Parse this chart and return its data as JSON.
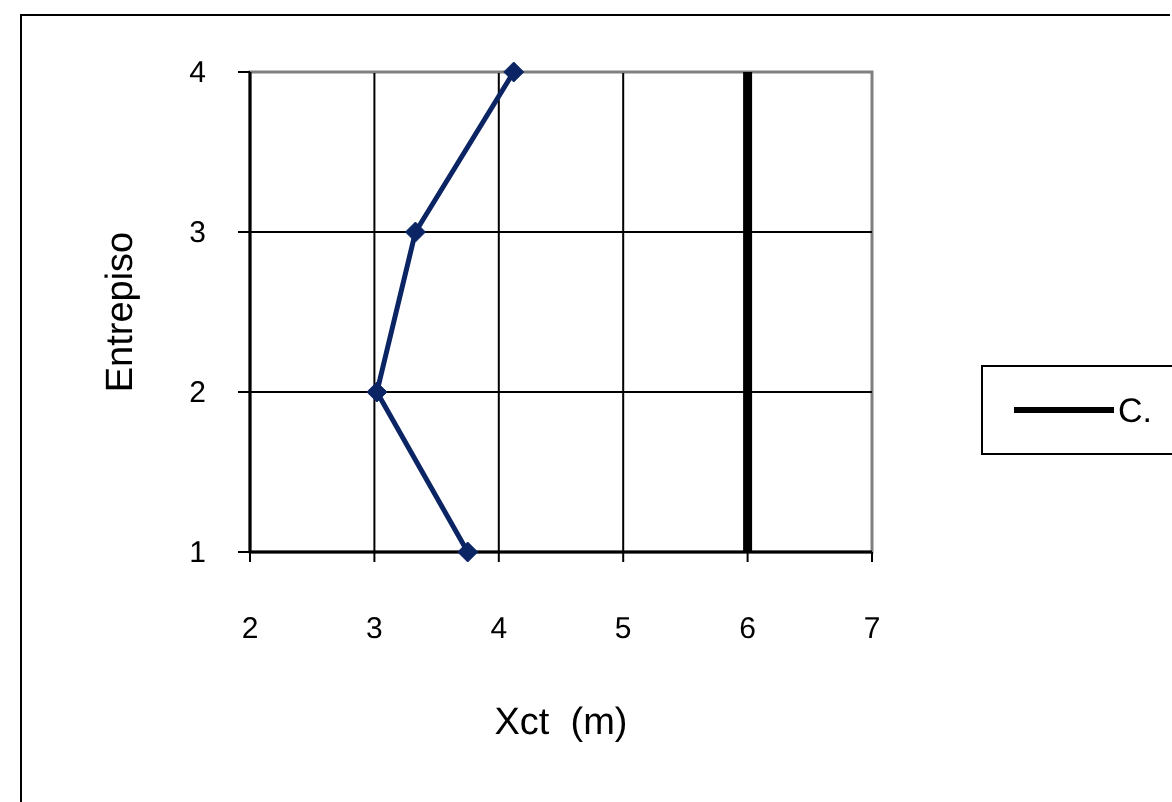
{
  "chart_data": {
    "type": "line",
    "xlabel": "Xct  (m)",
    "ylabel": "Entrepiso",
    "xlim": [
      2,
      7
    ],
    "xticks": [
      2,
      3,
      4,
      5,
      6,
      7
    ],
    "ylim": [
      1,
      4
    ],
    "yticks": [
      1,
      2,
      3,
      4
    ],
    "grid": true,
    "legend": "right",
    "series": [
      {
        "color": "#0a2464",
        "x": [
          3.75,
          3.02,
          3.33,
          4.12
        ],
        "values": [
          1,
          2,
          3,
          4
        ],
        "marker": "diamond"
      },
      {
        "name": "C.",
        "color": "#000000",
        "x": [
          6,
          6
        ],
        "values": [
          1,
          4
        ],
        "marker": "none"
      }
    ]
  }
}
